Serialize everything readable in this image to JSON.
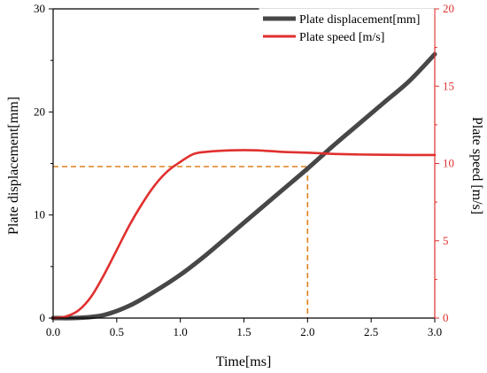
{
  "chart_data": {
    "type": "line",
    "xlabel": "Time[ms]",
    "ylabel_left": "Plate displacement[mm]",
    "ylabel_right": "Plate speed [m/s]",
    "xlim": [
      0,
      3.0
    ],
    "ylim_left": [
      0,
      30
    ],
    "ylim_right": [
      0,
      20
    ],
    "x_ticks": [
      "0.0",
      "0.5",
      "1.0",
      "1.5",
      "2.0",
      "2.5",
      "3.0"
    ],
    "y_left_ticks": [
      "0",
      "10",
      "20",
      "30"
    ],
    "y_right_ticks": [
      "0",
      "5",
      "10",
      "15",
      "20"
    ],
    "grid": false,
    "legend_position": "top-right",
    "series": [
      {
        "name": "Plate displacement[mm]",
        "axis": "left",
        "color": "#474747",
        "x": [
          0,
          0.2,
          0.4,
          0.6,
          0.8,
          1.0,
          1.2,
          1.4,
          1.6,
          1.8,
          2.0,
          2.2,
          2.4,
          2.6,
          2.8,
          3.0
        ],
        "values": [
          0,
          0.02,
          0.3,
          1.2,
          2.6,
          4.2,
          6.1,
          8.2,
          10.3,
          12.4,
          14.5,
          16.7,
          18.8,
          20.9,
          23.0,
          25.6
        ]
      },
      {
        "name": "Plate speed [m/s]",
        "axis": "right",
        "color": "#e0302e",
        "x": [
          0,
          0.1,
          0.2,
          0.3,
          0.4,
          0.5,
          0.6,
          0.7,
          0.8,
          0.9,
          1.0,
          1.1,
          1.2,
          1.4,
          1.6,
          1.8,
          2.0,
          2.2,
          2.4,
          2.6,
          2.8,
          3.0
        ],
        "values": [
          0,
          0.1,
          0.5,
          1.4,
          2.8,
          4.4,
          6.0,
          7.4,
          8.6,
          9.5,
          10.1,
          10.6,
          10.75,
          10.85,
          10.85,
          10.75,
          10.7,
          10.62,
          10.58,
          10.56,
          10.55,
          10.55
        ]
      }
    ],
    "reference_lines": {
      "color": "#e08020",
      "x": 2.0,
      "y_left": 14.7
    }
  }
}
